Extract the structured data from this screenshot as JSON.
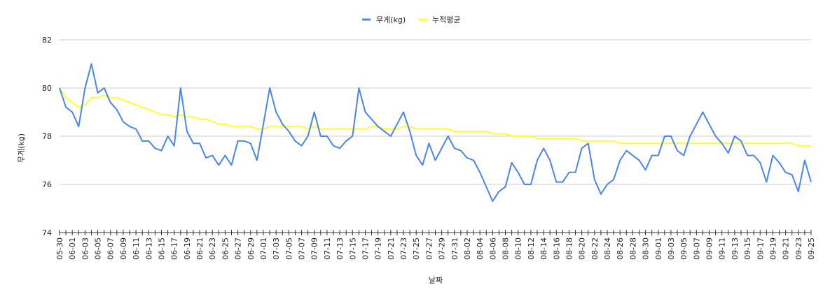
{
  "chart_data": {
    "type": "line",
    "xlabel": "날짜",
    "ylabel": "무게(kg)",
    "ylim": [
      74,
      82
    ],
    "yticks": [
      74,
      76,
      78,
      80,
      82
    ],
    "grid": true,
    "legend_position": "top",
    "x": [
      "05-30",
      "05-31",
      "06-01",
      "06-02",
      "06-03",
      "06-04",
      "06-05",
      "06-06",
      "06-07",
      "06-08",
      "06-09",
      "06-10",
      "06-11",
      "06-12",
      "06-13",
      "06-14",
      "06-15",
      "06-16",
      "06-17",
      "06-18",
      "06-19",
      "06-20",
      "06-21",
      "06-22",
      "06-23",
      "06-24",
      "06-25",
      "06-26",
      "06-27",
      "06-28",
      "06-29",
      "06-30",
      "07-01",
      "07-02",
      "07-03",
      "07-04",
      "07-05",
      "07-06",
      "07-07",
      "07-08",
      "07-09",
      "07-10",
      "07-11",
      "07-12",
      "07-13",
      "07-14",
      "07-15",
      "07-16",
      "07-17",
      "07-18",
      "07-19",
      "07-20",
      "07-21",
      "07-22",
      "07-23",
      "07-24",
      "07-25",
      "07-26",
      "07-27",
      "07-28",
      "07-29",
      "07-30",
      "07-31",
      "08-01",
      "08-02",
      "08-03",
      "08-04",
      "08-05",
      "08-06",
      "08-07",
      "08-08",
      "08-09",
      "08-10",
      "08-11",
      "08-12",
      "08-13",
      "08-14",
      "08-15",
      "08-16",
      "08-17",
      "08-18",
      "08-19",
      "08-20",
      "08-21",
      "08-22",
      "08-23",
      "08-24",
      "08-25",
      "08-26",
      "08-27",
      "08-28",
      "08-29",
      "08-30",
      "08-31",
      "09-01",
      "09-02",
      "09-03",
      "09-04",
      "09-05",
      "09-06",
      "09-07",
      "09-08",
      "09-09",
      "09-10",
      "09-11",
      "09-12",
      "09-13",
      "09-14",
      "09-15",
      "09-16",
      "09-17",
      "09-18",
      "09-19",
      "09-20",
      "09-21",
      "09-22",
      "09-23",
      "09-24",
      "09-25"
    ],
    "x_tick_labels": [
      "05-30",
      "06-01",
      "06-03",
      "06-05",
      "06-07",
      "06-09",
      "06-11",
      "06-13",
      "06-15",
      "06-17",
      "06-19",
      "06-21",
      "06-23",
      "06-25",
      "06-27",
      "06-29",
      "07-01",
      "07-03",
      "07-05",
      "07-07",
      "07-09",
      "07-11",
      "07-13",
      "07-15",
      "07-17",
      "07-19",
      "07-21",
      "07-23",
      "07-25",
      "07-27",
      "07-29",
      "07-31",
      "08-02",
      "08-04",
      "08-06",
      "08-08",
      "08-10",
      "08-12",
      "08-14",
      "08-16",
      "08-18",
      "08-20",
      "08-22",
      "08-24",
      "08-26",
      "08-28",
      "08-30",
      "09-01",
      "09-03",
      "09-05",
      "09-07",
      "09-09",
      "09-11",
      "09-13",
      "09-15",
      "09-17",
      "09-19",
      "09-21",
      "09-23",
      "09-25"
    ],
    "series": [
      {
        "name": "무게(kg)",
        "color": "#4a86e8",
        "values": [
          80.0,
          79.2,
          79.0,
          78.4,
          80.0,
          81.0,
          79.8,
          80.0,
          79.4,
          79.1,
          78.6,
          78.4,
          78.3,
          77.8,
          77.8,
          77.5,
          77.4,
          78.0,
          77.6,
          80.0,
          78.2,
          77.7,
          77.7,
          77.1,
          77.2,
          76.8,
          77.2,
          76.8,
          77.8,
          77.8,
          77.7,
          77.0,
          78.5,
          80.0,
          79.0,
          78.5,
          78.2,
          77.8,
          77.6,
          78.0,
          79.0,
          78.0,
          78.0,
          77.6,
          77.5,
          77.8,
          78.0,
          80.0,
          79.0,
          78.7,
          78.4,
          78.2,
          78.0,
          78.5,
          79.0,
          78.2,
          77.2,
          76.8,
          77.7,
          77.0,
          77.5,
          78.0,
          77.5,
          77.4,
          77.1,
          77.0,
          76.5,
          75.9,
          75.3,
          75.7,
          75.9,
          76.9,
          76.5,
          76.0,
          76.0,
          77.0,
          77.5,
          77.0,
          76.1,
          76.1,
          76.5,
          76.5,
          77.5,
          77.7,
          76.2,
          75.6,
          76.0,
          76.2,
          77.0,
          77.4,
          77.2,
          77.0,
          76.6,
          77.2,
          77.2,
          78.0,
          78.0,
          77.4,
          77.2,
          78.0,
          78.5,
          79.0,
          78.5,
          78.0,
          77.7,
          77.3,
          78.0,
          77.8,
          77.2,
          77.2,
          76.9,
          76.1,
          77.2,
          76.9,
          76.5,
          76.4,
          75.7,
          77.0,
          76.1
        ]
      },
      {
        "name": "누적평균",
        "color": "#ffff33",
        "values": [
          80.0,
          79.6,
          79.4,
          79.2,
          79.3,
          79.6,
          79.6,
          79.7,
          79.6,
          79.6,
          79.5,
          79.4,
          79.3,
          79.2,
          79.1,
          79.0,
          78.9,
          78.9,
          78.8,
          78.9,
          78.8,
          78.8,
          78.7,
          78.7,
          78.6,
          78.5,
          78.5,
          78.4,
          78.4,
          78.4,
          78.4,
          78.3,
          78.3,
          78.4,
          78.4,
          78.4,
          78.4,
          78.4,
          78.4,
          78.3,
          78.4,
          78.3,
          78.3,
          78.3,
          78.3,
          78.3,
          78.3,
          78.3,
          78.3,
          78.4,
          78.4,
          78.3,
          78.3,
          78.3,
          78.4,
          78.4,
          78.3,
          78.3,
          78.3,
          78.3,
          78.3,
          78.3,
          78.2,
          78.2,
          78.2,
          78.2,
          78.2,
          78.2,
          78.1,
          78.1,
          78.1,
          78.0,
          78.0,
          78.0,
          78.0,
          77.9,
          77.9,
          77.9,
          77.9,
          77.9,
          77.9,
          77.9,
          77.8,
          77.8,
          77.8,
          77.8,
          77.8,
          77.8,
          77.7,
          77.7,
          77.7,
          77.7,
          77.7,
          77.7,
          77.7,
          77.7,
          77.7,
          77.7,
          77.7,
          77.7,
          77.7,
          77.7,
          77.7,
          77.7,
          77.7,
          77.7,
          77.7,
          77.7,
          77.7,
          77.7,
          77.7,
          77.7,
          77.7,
          77.7,
          77.7,
          77.7,
          77.6,
          77.6,
          77.6
        ]
      }
    ],
    "colors": {
      "grid": "#cccccc",
      "axis": "#333333",
      "background": "#ffffff"
    }
  }
}
